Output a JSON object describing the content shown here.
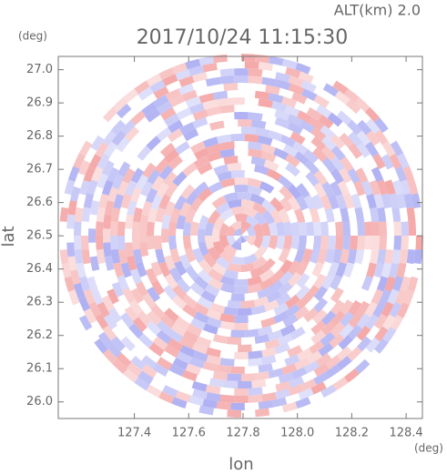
{
  "chart_data": {
    "type": "radar-ppi",
    "title": "2017/10/24 11:15:30",
    "subtitle": "ALT(km) 2.0",
    "xlabel": "lon",
    "ylabel": "lat",
    "xunit": "(deg)",
    "yunit": "(deg)",
    "xlim": [
      127.12,
      128.46
    ],
    "ylim": [
      25.95,
      27.04
    ],
    "xticks": [
      127.4,
      127.6,
      127.8,
      {
        "value": 128.0,
        "label": "128.0"
      },
      128.2,
      128.4
    ],
    "yticks": [
      {
        "value": 26.0,
        "label": "26.0"
      },
      26.1,
      26.2,
      26.3,
      26.4,
      26.5,
      26.6,
      26.7,
      26.8,
      26.9,
      {
        "value": 27.0,
        "label": "27.0"
      }
    ],
    "colors": [
      "#f4a3a3",
      "#a9abf2"
    ]
  }
}
